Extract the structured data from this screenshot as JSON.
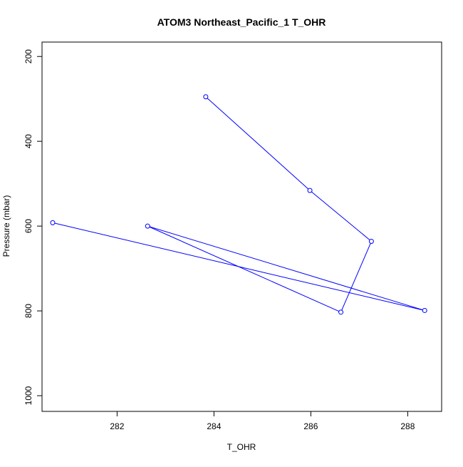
{
  "chart_data": {
    "type": "line",
    "title": "ATOM3 Northeast_Pacific_1 T_OHR",
    "xlabel": "T_OHR",
    "ylabel": "Pressure (mbar)",
    "xlim": [
      280.45,
      288.7
    ],
    "ylim": [
      1037,
      166
    ],
    "y_reversed": true,
    "xticks": [
      282,
      284,
      286,
      288
    ],
    "yticks": [
      200,
      400,
      600,
      800,
      1000
    ],
    "grid": false,
    "legend": "none",
    "series": [
      {
        "color": "#0000ff",
        "marker": "open-circle",
        "x": [
          283.83,
          285.98,
          287.25,
          286.62,
          282.63,
          288.35,
          280.67
        ],
        "y": [
          295,
          516,
          636,
          803,
          600,
          799,
          592
        ]
      }
    ]
  }
}
